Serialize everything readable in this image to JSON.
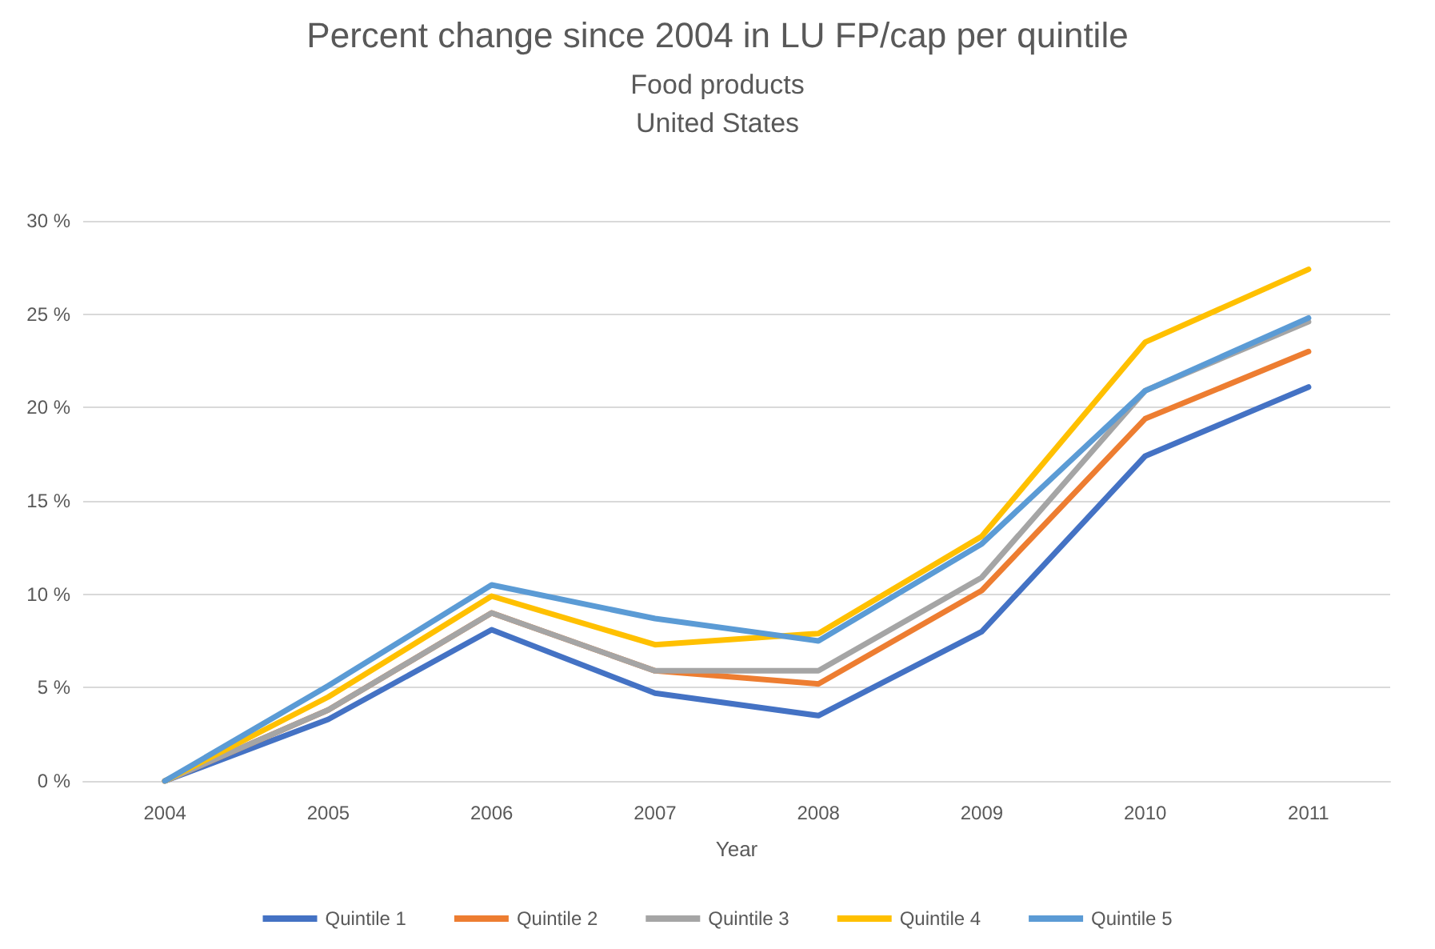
{
  "chart_data": {
    "type": "line",
    "title": "Percent change since 2004 in LU FP/cap per quintile",
    "subtitle": "Food products\nUnited States",
    "xlabel": "Year",
    "categories": [
      "2004",
      "2005",
      "2006",
      "2007",
      "2008",
      "2009",
      "2010",
      "2011"
    ],
    "series": [
      {
        "name": "Quintile 1",
        "color": "#4472c4",
        "values": [
          0,
          3.3,
          8.1,
          4.7,
          3.5,
          8.0,
          17.4,
          21.1
        ]
      },
      {
        "name": "Quintile 2",
        "color": "#ed7d31",
        "values": [
          0,
          3.8,
          9.0,
          5.9,
          5.2,
          10.2,
          19.4,
          23.0
        ]
      },
      {
        "name": "Quintile 3",
        "color": "#a5a5a5",
        "values": [
          0,
          3.8,
          9.0,
          5.9,
          5.9,
          10.9,
          20.9,
          24.6
        ]
      },
      {
        "name": "Quintile 4",
        "color": "#ffc000",
        "values": [
          0,
          4.5,
          9.9,
          7.3,
          7.9,
          13.1,
          23.5,
          27.4
        ]
      },
      {
        "name": "Quintile 5",
        "color": "#5b9bd5",
        "values": [
          0,
          5.1,
          10.5,
          8.7,
          7.5,
          12.7,
          20.9,
          24.8
        ]
      }
    ],
    "ylim": [
      0,
      30
    ],
    "yticks": [
      {
        "value": 0,
        "label": "0 %"
      },
      {
        "value": 5,
        "label": "5 %"
      },
      {
        "value": 10,
        "label": "10 %"
      },
      {
        "value": 15,
        "label": "15 %"
      },
      {
        "value": 20,
        "label": "20 %"
      },
      {
        "value": 25,
        "label": "25 %"
      },
      {
        "value": 30,
        "label": "30 %"
      }
    ],
    "grid": "y",
    "legend": "bottom",
    "marker": "none",
    "line_style": "solid"
  }
}
